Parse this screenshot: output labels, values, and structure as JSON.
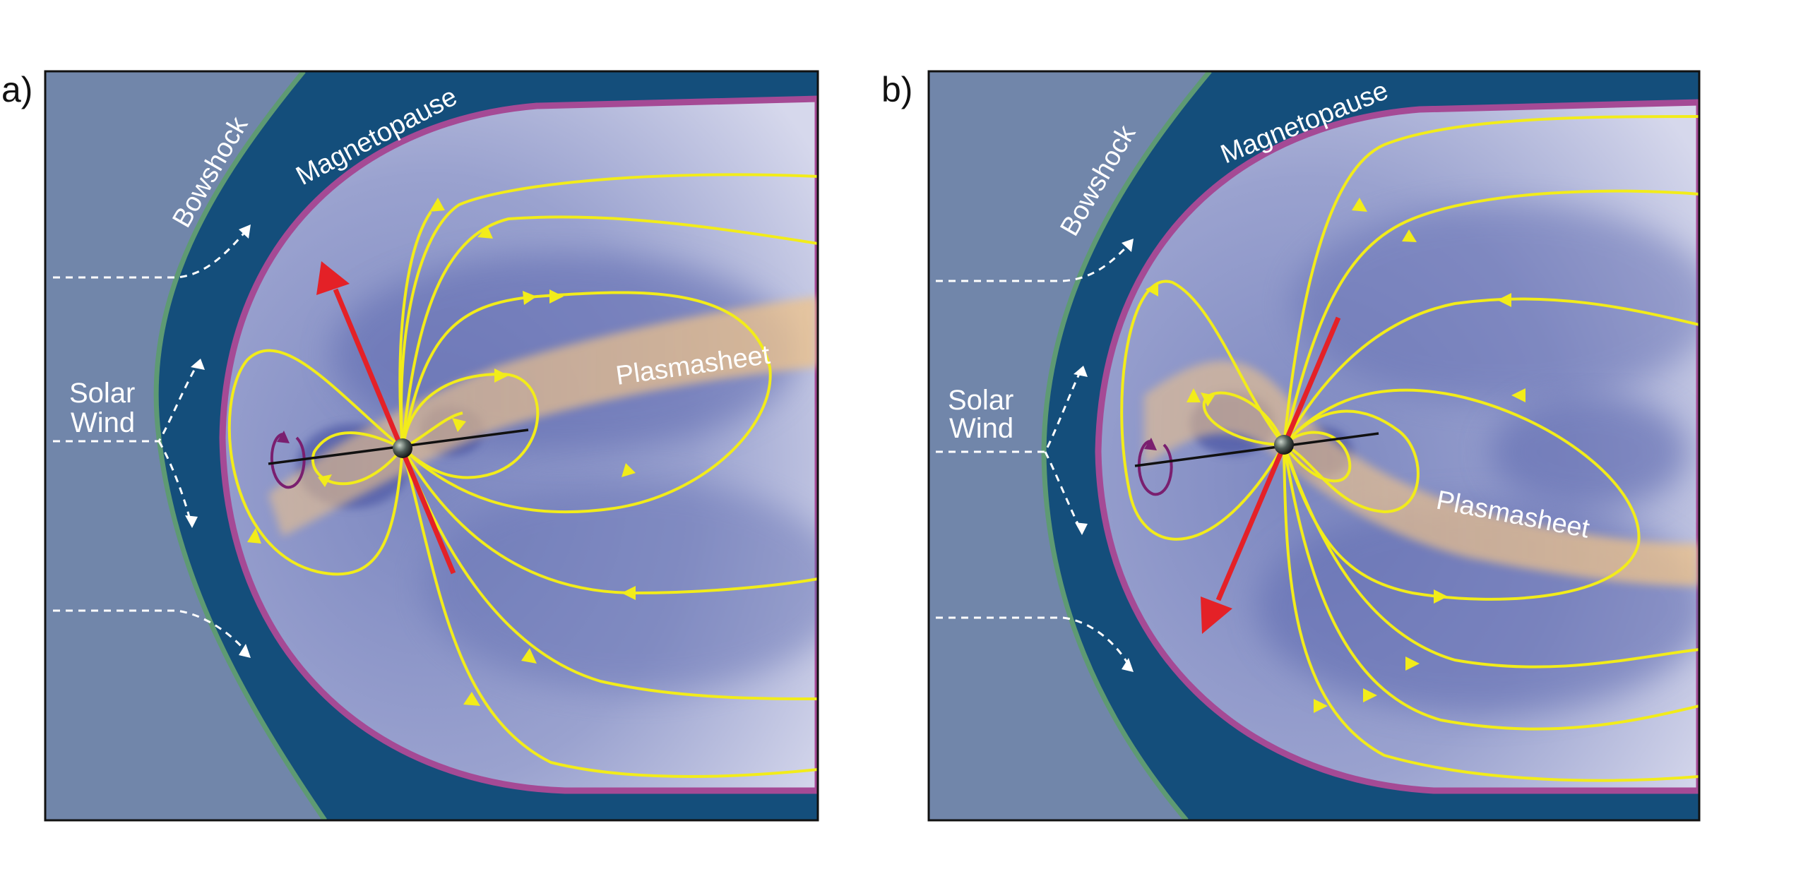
{
  "panels": [
    {
      "letter": "a)",
      "labels": {
        "bowshock": "Bowshock",
        "magnetopause": "Magnetopause",
        "solar_wind_line1": "Solar",
        "solar_wind_line2": "Wind",
        "plasmasheet": "Plasmasheet"
      },
      "dipole_direction": "up"
    },
    {
      "letter": "b)",
      "labels": {
        "bowshock": "Bowshock",
        "magnetopause": "Magnetopause",
        "solar_wind_line1": "Solar",
        "solar_wind_line2": "Wind",
        "plasmasheet": "Plasmasheet"
      },
      "dipole_direction": "down"
    }
  ],
  "colors": {
    "solar_wind_region": "#7186aa",
    "magnetosheath": "#144e7b",
    "magnetosphere_light": "#d2d4ea",
    "magnetosphere_dark": "#5b67ab",
    "bowshock_edge": "#5e9a73",
    "magnetopause_edge": "#a54a95",
    "plasmasheet": "#f0c48a",
    "field_lines": "#f2ec1a",
    "dipole_axis": "#e42127",
    "rotation_axis": "#111111",
    "rotation_arrow": "#7a1f6f",
    "flow_lines": "#ffffff"
  }
}
